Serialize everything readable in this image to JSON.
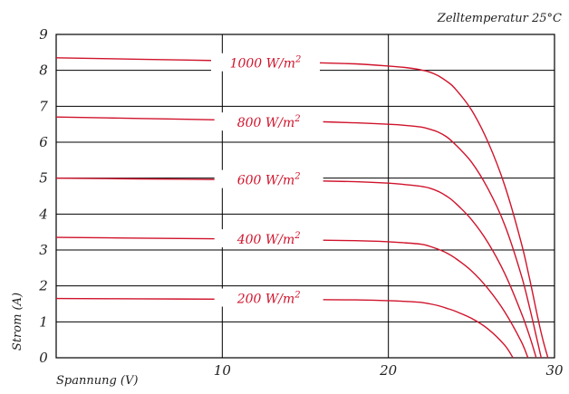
{
  "chart_data": {
    "type": "line",
    "note": "Zelltemperatur 25°C",
    "xlabel": "Spannung (V)",
    "ylabel": "Strom (A)",
    "xlim": [
      0,
      30
    ],
    "ylim": [
      0,
      9
    ],
    "x_ticks": [
      "10",
      "20",
      "30"
    ],
    "y_ticks": [
      "0",
      "1",
      "2",
      "3",
      "4",
      "5",
      "6",
      "7",
      "8",
      "9"
    ],
    "grid": true,
    "line_color": "#d0142c",
    "series": [
      {
        "name": "1000 W/m²",
        "label_base": "1000 W/m",
        "label_sup": "2",
        "label_x": 12.6,
        "label_y": 8.2,
        "x": [
          0,
          5,
          10,
          15,
          18,
          20,
          21,
          22,
          22.5,
          23,
          23.5,
          24,
          25,
          26,
          27,
          28,
          28.5,
          29,
          29.3,
          29.6
        ],
        "y": [
          8.35,
          8.31,
          8.27,
          8.22,
          8.18,
          8.12,
          8.08,
          8.01,
          7.95,
          7.85,
          7.7,
          7.5,
          6.9,
          6.0,
          4.8,
          3.2,
          2.2,
          1.1,
          0.5,
          0.0
        ]
      },
      {
        "name": "800 W/m²",
        "label_base": "800 W/m",
        "label_sup": "2",
        "label_x": 12.8,
        "label_y": 6.55,
        "x": [
          0,
          5,
          10,
          15,
          18,
          20,
          21,
          22,
          22.5,
          23,
          23.5,
          24,
          25,
          26,
          27,
          28,
          28.5,
          29,
          29.2
        ],
        "y": [
          6.7,
          6.66,
          6.62,
          6.58,
          6.54,
          6.5,
          6.47,
          6.42,
          6.36,
          6.28,
          6.15,
          5.95,
          5.45,
          4.7,
          3.7,
          2.3,
          1.4,
          0.4,
          0.0
        ]
      },
      {
        "name": "600 W/m²",
        "label_base": "600 W/m",
        "label_sup": "2",
        "label_x": 12.8,
        "label_y": 4.95,
        "x": [
          0,
          5,
          10,
          15,
          18,
          20,
          21,
          22,
          22.5,
          23,
          23.5,
          24,
          25,
          26,
          27,
          28,
          28.5,
          28.9
        ],
        "y": [
          5.0,
          4.98,
          4.96,
          4.93,
          4.9,
          4.86,
          4.82,
          4.77,
          4.72,
          4.63,
          4.5,
          4.32,
          3.85,
          3.2,
          2.35,
          1.25,
          0.6,
          0.0
        ]
      },
      {
        "name": "400 W/m²",
        "label_base": "400 W/m",
        "label_sup": "2",
        "label_x": 12.8,
        "label_y": 3.3,
        "x": [
          0,
          5,
          10,
          15,
          18,
          20,
          21,
          22,
          22.5,
          23,
          23.5,
          24,
          25,
          26,
          27,
          28,
          28.4
        ],
        "y": [
          3.35,
          3.33,
          3.31,
          3.28,
          3.26,
          3.23,
          3.2,
          3.16,
          3.1,
          3.02,
          2.92,
          2.78,
          2.42,
          1.92,
          1.28,
          0.45,
          0.0
        ]
      },
      {
        "name": "200 W/m²",
        "label_base": "200 W/m",
        "label_sup": "2",
        "label_x": 12.8,
        "label_y": 1.65,
        "x": [
          0,
          5,
          10,
          15,
          18,
          20,
          21,
          22,
          22.5,
          23,
          23.5,
          24,
          25,
          26,
          27,
          27.5
        ],
        "y": [
          1.65,
          1.64,
          1.63,
          1.62,
          1.61,
          1.59,
          1.57,
          1.54,
          1.5,
          1.45,
          1.38,
          1.3,
          1.1,
          0.8,
          0.35,
          0.0
        ]
      }
    ]
  }
}
